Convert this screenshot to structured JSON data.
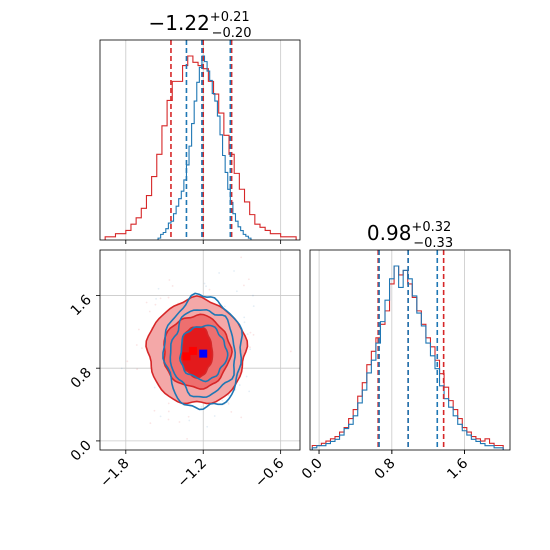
{
  "chart_data": [
    {
      "type": "step-histogram",
      "panel": "top-left",
      "title": {
        "median": "−1.22",
        "plus": "+0.21",
        "minus": "−0.20"
      },
      "xlim": [
        -2.0,
        -0.45
      ],
      "grid": true,
      "x_ticks": [
        -1.8,
        -1.2,
        -0.6
      ],
      "series": [
        {
          "color": "#d62728",
          "quantile_lines": [
            -1.45,
            -1.2,
            -0.98
          ],
          "x": [
            -1.94,
            -1.9,
            -1.86,
            -1.82,
            -1.78,
            -1.74,
            -1.7,
            -1.66,
            -1.62,
            -1.58,
            -1.54,
            -1.5,
            -1.46,
            -1.42,
            -1.38,
            -1.34,
            -1.3,
            -1.26,
            -1.22,
            -1.18,
            -1.14,
            -1.1,
            -1.06,
            -1.02,
            -0.98,
            -0.94,
            -0.9,
            -0.86,
            -0.82,
            -0.78,
            -0.74,
            -0.7,
            -0.66,
            -0.62,
            -0.58,
            -0.54,
            -0.5
          ],
          "counts": [
            0.01,
            0.01,
            0.02,
            0.02,
            0.03,
            0.05,
            0.07,
            0.1,
            0.14,
            0.2,
            0.27,
            0.36,
            0.44,
            0.5,
            0.5,
            0.55,
            0.58,
            0.56,
            0.55,
            0.54,
            0.5,
            0.46,
            0.4,
            0.33,
            0.27,
            0.21,
            0.16,
            0.12,
            0.08,
            0.05,
            0.04,
            0.03,
            0.02,
            0.02,
            0.01,
            0.01,
            0.01
          ]
        },
        {
          "color": "#1f77b4",
          "quantile_lines": [
            -1.33,
            -1.21,
            -0.99
          ],
          "x": [
            -1.54,
            -1.52,
            -1.5,
            -1.48,
            -1.46,
            -1.44,
            -1.42,
            -1.4,
            -1.38,
            -1.36,
            -1.34,
            -1.32,
            -1.3,
            -1.28,
            -1.26,
            -1.24,
            -1.22,
            -1.2,
            -1.18,
            -1.16,
            -1.14,
            -1.12,
            -1.1,
            -1.08,
            -1.06,
            -1.04,
            -1.02,
            -1.0,
            -0.98,
            -0.96,
            -0.94,
            -0.92,
            -0.9,
            -0.88,
            -0.86,
            -0.84
          ],
          "counts": [
            0.01,
            0.03,
            0.04,
            0.06,
            0.09,
            0.1,
            0.14,
            0.18,
            0.22,
            0.26,
            0.32,
            0.4,
            0.5,
            0.62,
            0.74,
            0.84,
            0.92,
            0.98,
            0.95,
            0.9,
            0.85,
            0.78,
            0.74,
            0.66,
            0.56,
            0.45,
            0.36,
            0.27,
            0.2,
            0.14,
            0.1,
            0.07,
            0.05,
            0.03,
            0.02,
            0.01
          ]
        }
      ]
    },
    {
      "type": "contour",
      "panel": "bottom-left",
      "xlim": [
        -2.0,
        -0.45
      ],
      "ylim": [
        -0.1,
        2.1
      ],
      "grid": true,
      "x_ticks": [
        -1.8,
        -1.2,
        -0.6
      ],
      "y_ticks": [
        0.0,
        0.8,
        1.6
      ],
      "series": [
        {
          "color": "#d62728",
          "filled": true,
          "center": [
            -1.25,
            0.98
          ],
          "levels": [
            {
              "rx": 0.12,
              "ry": 0.28,
              "fill": "#e31a1c"
            },
            {
              "rx": 0.26,
              "ry": 0.4,
              "fill": "#ee6f6f"
            },
            {
              "rx": 0.38,
              "ry": 0.58,
              "fill": "#f4a8a8"
            }
          ],
          "markers": [
            [
              -1.33,
              0.93
            ],
            [
              -1.28,
              0.99
            ]
          ]
        },
        {
          "color": "#1f77b4",
          "filled": false,
          "center": [
            -1.2,
            0.97
          ],
          "levels": [
            {
              "rx": 0.18,
              "ry": 0.3
            },
            {
              "rx": 0.25,
              "ry": 0.48
            },
            {
              "rx": 0.3,
              "ry": 0.62
            }
          ],
          "markers": [
            [
              -1.2,
              0.96
            ]
          ]
        }
      ]
    },
    {
      "type": "step-histogram",
      "panel": "bottom-right",
      "title": {
        "median": "0.98",
        "plus": "+0.32",
        "minus": "−0.33"
      },
      "xlim": [
        -0.1,
        2.1
      ],
      "grid": true,
      "x_ticks": [
        0.0,
        0.8,
        1.6
      ],
      "series": [
        {
          "color": "#d62728",
          "quantile_lines": [
            0.65,
            0.98,
            1.37
          ],
          "x": [
            -0.05,
            0.0,
            0.05,
            0.1,
            0.15,
            0.2,
            0.25,
            0.3,
            0.35,
            0.4,
            0.45,
            0.5,
            0.55,
            0.6,
            0.65,
            0.7,
            0.75,
            0.8,
            0.85,
            0.9,
            0.95,
            1.0,
            1.05,
            1.1,
            1.15,
            1.2,
            1.25,
            1.3,
            1.35,
            1.4,
            1.45,
            1.5,
            1.55,
            1.6,
            1.65,
            1.7,
            1.75,
            1.8,
            1.85,
            1.9,
            1.95,
            2.0
          ],
          "counts": [
            0.02,
            0.02,
            0.03,
            0.04,
            0.05,
            0.06,
            0.08,
            0.1,
            0.14,
            0.18,
            0.24,
            0.3,
            0.38,
            0.44,
            0.5,
            0.56,
            0.62,
            0.74,
            0.82,
            0.78,
            0.8,
            0.74,
            0.68,
            0.62,
            0.56,
            0.5,
            0.46,
            0.4,
            0.34,
            0.28,
            0.22,
            0.18,
            0.14,
            0.1,
            0.08,
            0.06,
            0.05,
            0.04,
            0.05,
            0.03,
            0.02,
            0.02
          ]
        },
        {
          "color": "#1f77b4",
          "quantile_lines": [
            0.66,
            0.98,
            1.3
          ],
          "x": [
            -0.05,
            0.0,
            0.05,
            0.1,
            0.15,
            0.2,
            0.25,
            0.3,
            0.35,
            0.4,
            0.45,
            0.5,
            0.55,
            0.6,
            0.65,
            0.7,
            0.75,
            0.8,
            0.85,
            0.9,
            0.95,
            1.0,
            1.05,
            1.1,
            1.15,
            1.2,
            1.25,
            1.3,
            1.35,
            1.4,
            1.45,
            1.5,
            1.55,
            1.6,
            1.65,
            1.7,
            1.75,
            1.8,
            1.85,
            1.9,
            1.95,
            2.0
          ],
          "counts": [
            0.01,
            0.02,
            0.02,
            0.03,
            0.04,
            0.05,
            0.07,
            0.1,
            0.12,
            0.16,
            0.22,
            0.28,
            0.36,
            0.42,
            0.5,
            0.6,
            0.7,
            0.8,
            0.86,
            0.76,
            0.84,
            0.8,
            0.72,
            0.64,
            0.58,
            0.5,
            0.44,
            0.38,
            0.3,
            0.24,
            0.2,
            0.16,
            0.12,
            0.09,
            0.07,
            0.05,
            0.04,
            0.03,
            0.02,
            0.02,
            0.01,
            0.01
          ]
        }
      ]
    }
  ]
}
